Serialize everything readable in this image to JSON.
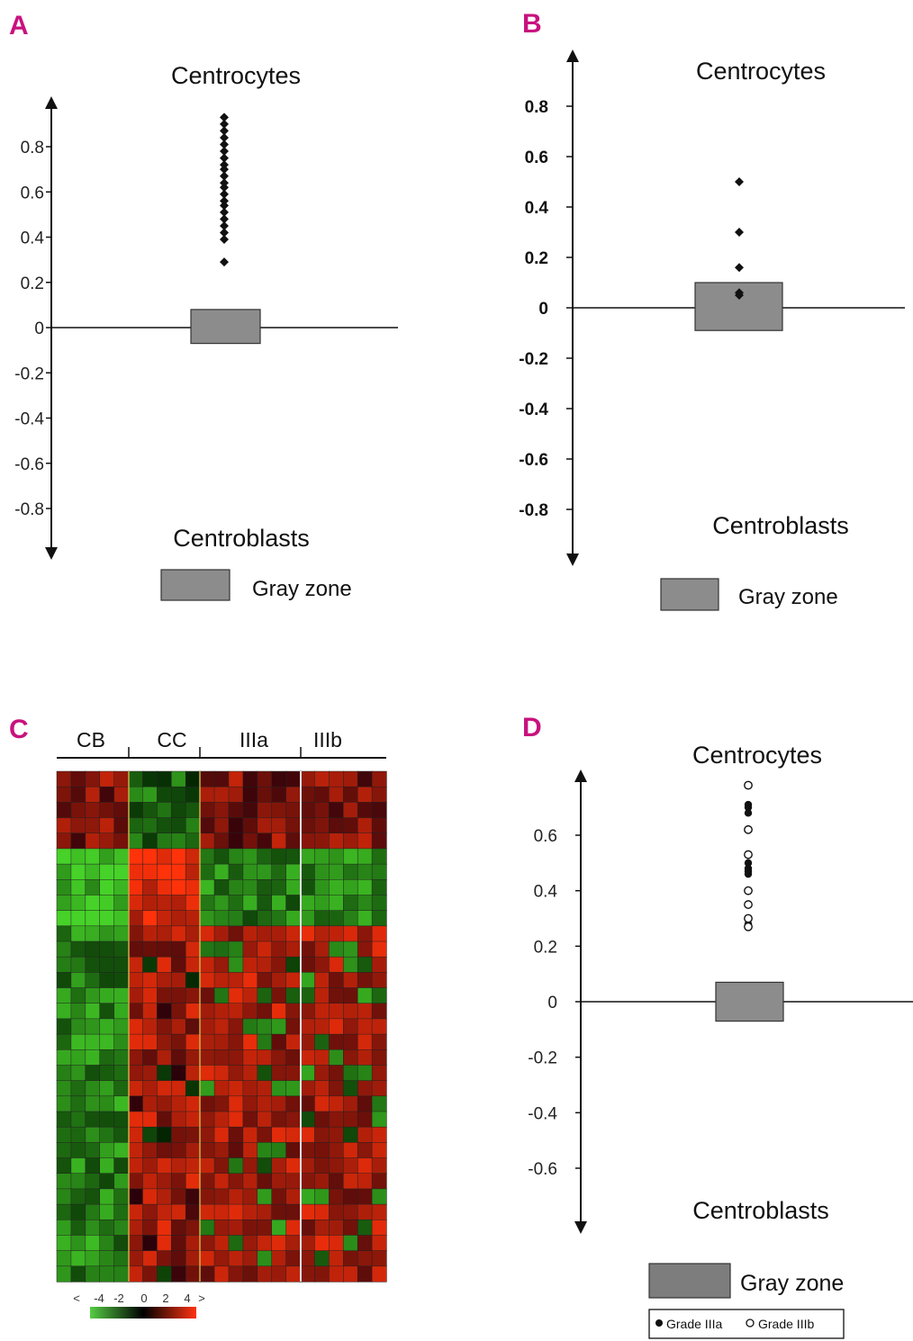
{
  "accent_color": "#c8127e",
  "chart_data": [
    {
      "panel": "A",
      "type": "scatter",
      "top_label": "Centrocytes",
      "bottom_label": "Centroblasts",
      "legend": "Gray zone",
      "yticks": [
        "0.8",
        "0.6",
        "0.4",
        "0.2",
        "0",
        "-0.2",
        "-0.4",
        "-0.6",
        "-0.8"
      ],
      "yticks_values": [
        0.8,
        0.6,
        0.4,
        0.2,
        0,
        -0.2,
        -0.4,
        -0.6,
        -0.8
      ],
      "ylim": [
        -1.0,
        1.0
      ],
      "gray_zone": [
        -0.07,
        0.08
      ],
      "points": [
        0.93,
        0.9,
        0.87,
        0.84,
        0.81,
        0.78,
        0.75,
        0.72,
        0.7,
        0.67,
        0.64,
        0.62,
        0.59,
        0.56,
        0.54,
        0.51,
        0.48,
        0.45,
        0.42,
        0.39,
        0.29
      ]
    },
    {
      "panel": "B",
      "type": "scatter",
      "top_label": "Centrocytes",
      "bottom_label": "Centroblasts",
      "legend": "Gray zone",
      "yticks": [
        "0.8",
        "0.6",
        "0.4",
        "0.2",
        "0",
        "-0.2",
        "-0.4",
        "-0.6",
        "-0.8"
      ],
      "yticks_values": [
        0.8,
        0.6,
        0.4,
        0.2,
        0,
        -0.2,
        -0.4,
        -0.6,
        -0.8
      ],
      "ylim": [
        -1.0,
        1.0
      ],
      "gray_zone": [
        -0.09,
        0.1
      ],
      "points": [
        0.5,
        0.3,
        0.16,
        0.06,
        0.05
      ]
    },
    {
      "panel": "C",
      "type": "heatmap",
      "groups": [
        "CB",
        "CC",
        "IIIa",
        "IIIb"
      ],
      "group_sizes": [
        5,
        5,
        7,
        6
      ],
      "rows": 33,
      "scale_labels": [
        "<",
        "-4",
        "-2",
        "0",
        "2",
        "4",
        ">"
      ],
      "scale_range": [
        -4,
        4
      ]
    },
    {
      "panel": "D",
      "type": "scatter",
      "top_label": "Centrocytes",
      "bottom_label": "Centroblasts",
      "legend": "Gray zone",
      "legend_grade_a": "Grade IIIa",
      "legend_grade_b": "Grade IIIb",
      "yticks": [
        "0.6",
        "0.4",
        "0.2",
        "0",
        "-0.2",
        "-0.4",
        "-0.6"
      ],
      "yticks_values": [
        0.6,
        0.4,
        0.2,
        0,
        -0.2,
        -0.4,
        -0.6
      ],
      "ylim": [
        -0.8,
        0.8
      ],
      "gray_zone": [
        -0.07,
        0.07
      ],
      "points_grade_a": [
        0.71,
        0.7,
        0.68,
        0.5,
        0.48,
        0.47,
        0.46,
        0.28
      ],
      "points_grade_b": [
        0.78,
        0.62,
        0.53,
        0.4,
        0.35,
        0.3,
        0.27
      ]
    }
  ]
}
